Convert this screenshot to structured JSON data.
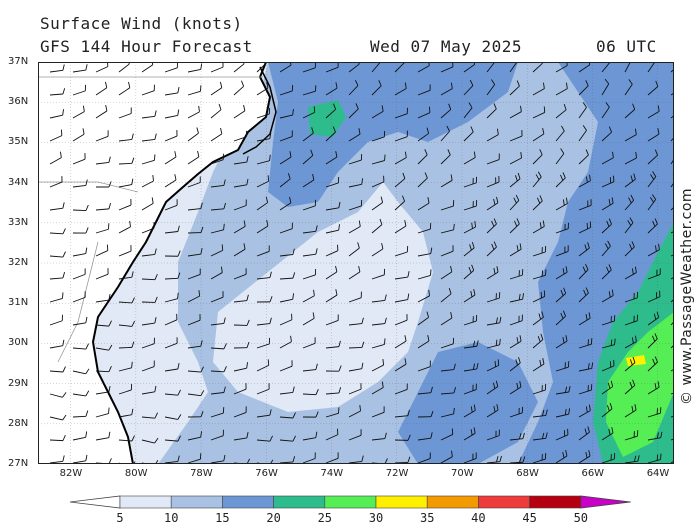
{
  "header": {
    "title": "Surface Wind (knots)",
    "forecast": "GFS 144 Hour Forecast",
    "date": "Wed 07 May 2025",
    "time": "06 UTC"
  },
  "credit": "© www.PassageWeather.com",
  "map": {
    "lat_labels": [
      "37N",
      "36N",
      "35N",
      "34N",
      "33N",
      "32N",
      "31N",
      "30N",
      "29N",
      "28N",
      "27N"
    ],
    "lon_labels": [
      "82W",
      "80W",
      "78W",
      "76W",
      "74W",
      "72W",
      "70W",
      "68W",
      "66W",
      "64W"
    ],
    "lon_range": [
      -83,
      -63.5
    ],
    "lat_range": [
      27,
      37
    ]
  },
  "legend": {
    "labels": [
      "5",
      "10",
      "15",
      "20",
      "25",
      "30",
      "35",
      "40",
      "45",
      "50"
    ],
    "colors": [
      "#e1e9f6",
      "#a9c2e3",
      "#6d97d4",
      "#2ebc8d",
      "#55ee55",
      "#fff000",
      "#f39a00",
      "#ee3b3b",
      "#b40010",
      "#c800c8"
    ]
  },
  "colors": {
    "land": "#ffffff",
    "coast": "#000000",
    "barb": "#111111"
  }
}
